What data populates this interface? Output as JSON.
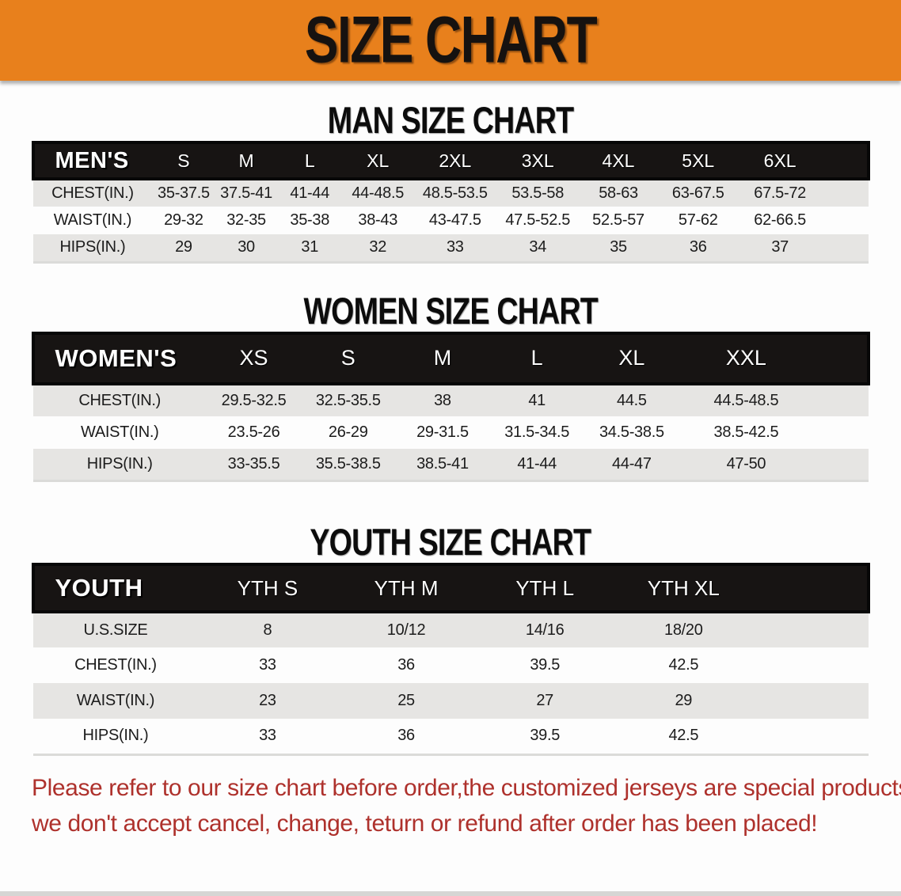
{
  "banner": {
    "title": "SIZE CHART",
    "bg_color": "#E8801C"
  },
  "sections": [
    {
      "heading": "MAN SIZE CHART",
      "table": {
        "header_label": "MEN'S",
        "columns": [
          "S",
          "M",
          "L",
          "XL",
          "2XL",
          "3XL",
          "4XL",
          "5XL",
          "6XL"
        ],
        "rows": [
          {
            "label": "CHEST(IN.)",
            "values": [
              "35-37.5",
              "37.5-41",
              "41-44",
              "44-48.5",
              "48.5-53.5",
              "53.5-58",
              "58-63",
              "63-67.5",
              "67.5-72"
            ]
          },
          {
            "label": "WAIST(IN.)",
            "values": [
              "29-32",
              "32-35",
              "35-38",
              "38-43",
              "43-47.5",
              "47.5-52.5",
              "52.5-57",
              "57-62",
              "62-66.5"
            ]
          },
          {
            "label": "HIPS(IN.)",
            "values": [
              "29",
              "30",
              "31",
              "32",
              "33",
              "34",
              "35",
              "36",
              "37"
            ]
          }
        ]
      }
    },
    {
      "heading": "WOMEN SIZE CHART",
      "table": {
        "header_label": "WOMEN'S",
        "columns": [
          "XS",
          "S",
          "M",
          "L",
          "XL",
          "XXL"
        ],
        "rows": [
          {
            "label": "CHEST(IN.)",
            "values": [
              "29.5-32.5",
              "32.5-35.5",
              "38",
              "41",
              "44.5",
              "44.5-48.5"
            ]
          },
          {
            "label": "WAIST(IN.)",
            "values": [
              "23.5-26",
              "26-29",
              "29-31.5",
              "31.5-34.5",
              "34.5-38.5",
              "38.5-42.5"
            ]
          },
          {
            "label": "HIPS(IN.)",
            "values": [
              "33-35.5",
              "35.5-38.5",
              "38.5-41",
              "41-44",
              "44-47",
              "47-50"
            ]
          }
        ]
      }
    },
    {
      "heading": "YOUTH SIZE CHART",
      "table": {
        "header_label": "YOUTH",
        "columns": [
          "YTH S",
          "YTH M",
          "YTH L",
          "YTH XL"
        ],
        "rows": [
          {
            "label": "U.S.SIZE",
            "values": [
              "8",
              "10/12",
              "14/16",
              "18/20"
            ]
          },
          {
            "label": "CHEST(IN.)",
            "values": [
              "33",
              "36",
              "39.5",
              "42.5"
            ]
          },
          {
            "label": "WAIST(IN.)",
            "values": [
              "23",
              "25",
              "27",
              "29"
            ]
          },
          {
            "label": "HIPS(IN.)",
            "values": [
              "33",
              "36",
              "39.5",
              "42.5"
            ]
          }
        ]
      }
    }
  ],
  "disclaimer": {
    "line1": "Please refer to our size chart before order,the customized jerseys are special products,",
    "line2": "we don't accept cancel, change, teturn or refund after order has been placed!",
    "color": "#AE312C"
  }
}
